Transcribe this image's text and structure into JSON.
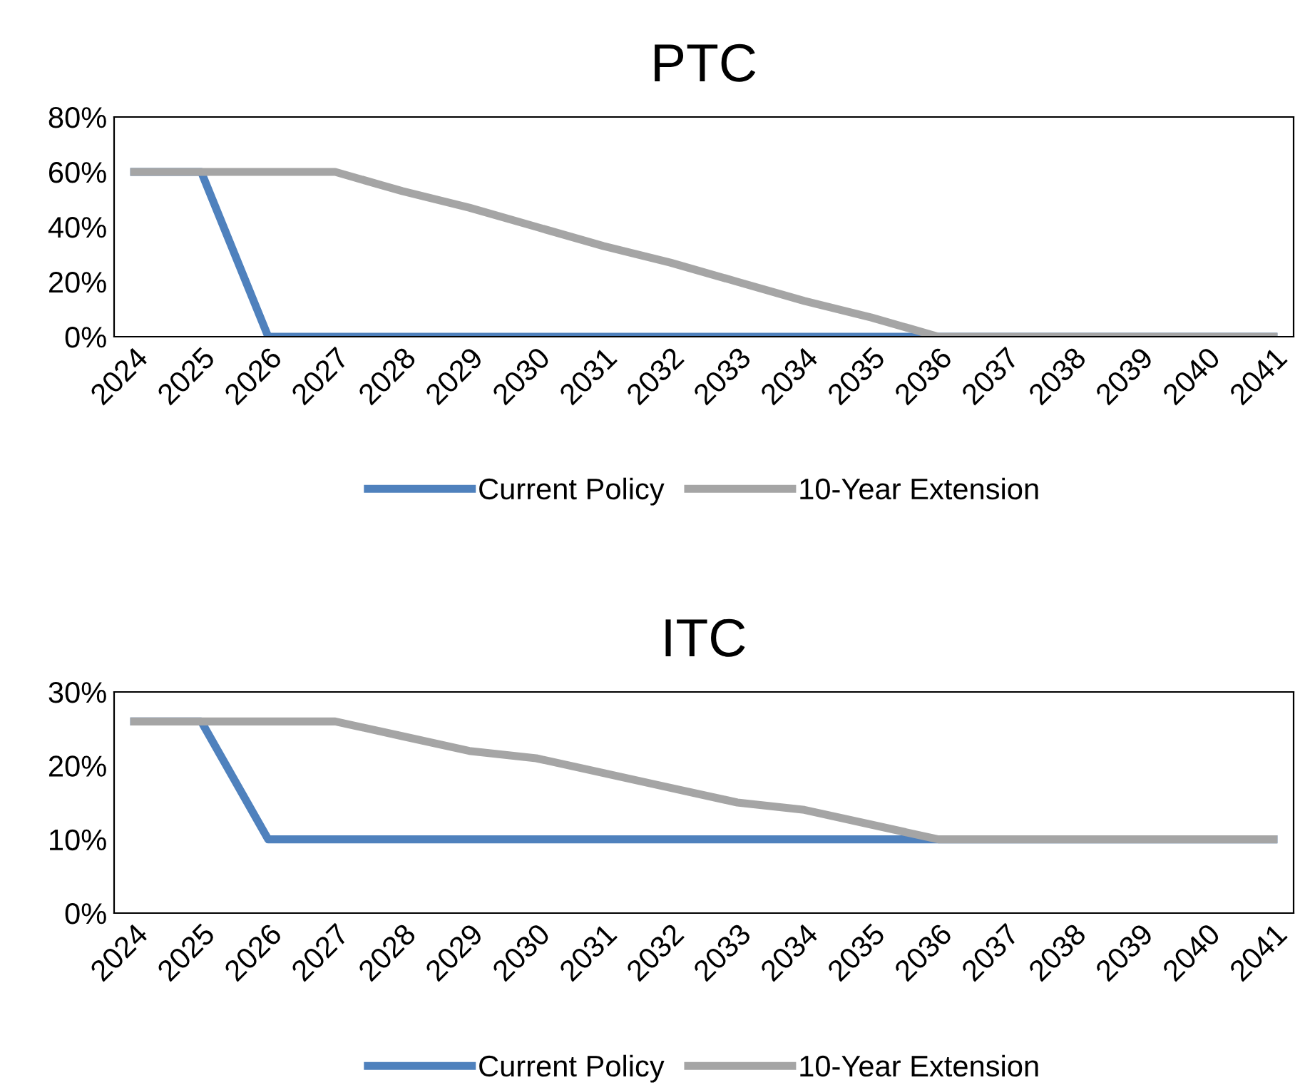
{
  "chart_data": [
    {
      "type": "line",
      "title": "PTC",
      "categories": [
        "2024",
        "2025",
        "2026",
        "2027",
        "2028",
        "2029",
        "2030",
        "2031",
        "2032",
        "2033",
        "2034",
        "2035",
        "2036",
        "2037",
        "2038",
        "2039",
        "2040",
        "2041"
      ],
      "series": [
        {
          "name": "Current Policy",
          "color": "#4f81bd",
          "values": [
            60,
            60,
            0,
            0,
            0,
            0,
            0,
            0,
            0,
            0,
            0,
            0,
            0,
            0,
            0,
            0,
            0,
            0
          ]
        },
        {
          "name": "10-Year Extension",
          "color": "#a5a5a5",
          "values": [
            60,
            60,
            60,
            60,
            53,
            47,
            40,
            33,
            27,
            20,
            13,
            7,
            0,
            0,
            0,
            0,
            0,
            0
          ]
        }
      ],
      "ylim": [
        0,
        80
      ],
      "yticks": [
        {
          "value": 0,
          "label": "0%"
        },
        {
          "value": 20,
          "label": "20%"
        },
        {
          "value": 40,
          "label": "40%"
        },
        {
          "value": 60,
          "label": "60%"
        },
        {
          "value": 80,
          "label": "80%"
        }
      ],
      "grid": false,
      "legend": "bottom",
      "marker": "none",
      "line_style": "solid"
    },
    {
      "type": "line",
      "title": "ITC",
      "categories": [
        "2024",
        "2025",
        "2026",
        "2027",
        "2028",
        "2029",
        "2030",
        "2031",
        "2032",
        "2033",
        "2034",
        "2035",
        "2036",
        "2037",
        "2038",
        "2039",
        "2040",
        "2041"
      ],
      "series": [
        {
          "name": "Current Policy",
          "color": "#4f81bd",
          "values": [
            26,
            26,
            10,
            10,
            10,
            10,
            10,
            10,
            10,
            10,
            10,
            10,
            10,
            10,
            10,
            10,
            10,
            10
          ]
        },
        {
          "name": "10-Year Extension",
          "color": "#a5a5a5",
          "values": [
            26,
            26,
            26,
            26,
            24,
            22,
            21,
            19,
            17,
            15,
            14,
            12,
            10,
            10,
            10,
            10,
            10,
            10
          ]
        }
      ],
      "ylim": [
        0,
        30
      ],
      "yticks": [
        {
          "value": 0,
          "label": "0%"
        },
        {
          "value": 10,
          "label": "10%"
        },
        {
          "value": 20,
          "label": "20%"
        },
        {
          "value": 30,
          "label": "30%"
        }
      ],
      "grid": false,
      "legend": "bottom",
      "marker": "none",
      "line_style": "solid"
    }
  ]
}
